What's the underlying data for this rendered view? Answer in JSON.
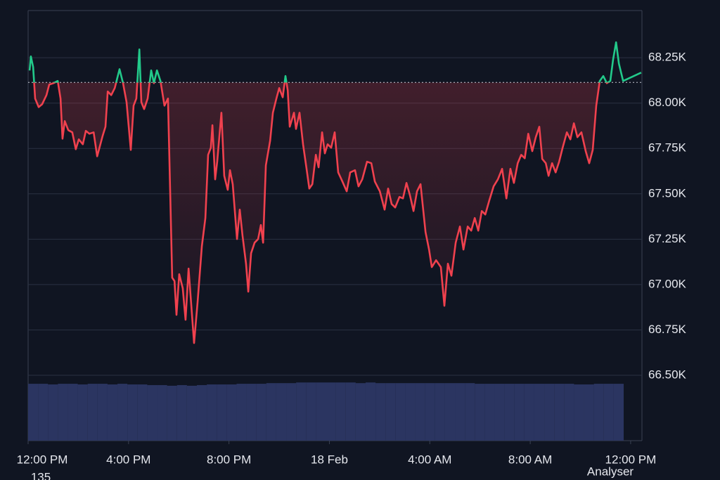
{
  "chart_data": {
    "type": "line",
    "x": [
      0.06,
      0.11,
      0.2,
      0.28,
      0.42,
      0.56,
      0.73,
      0.84,
      1.01,
      1.18,
      1.29,
      1.37,
      1.46,
      1.6,
      1.76,
      1.9,
      2.02,
      2.18,
      2.3,
      2.44,
      2.61,
      2.75,
      2.97,
      3.08,
      3.17,
      3.31,
      3.45,
      3.64,
      3.78,
      3.92,
      4.09,
      4.2,
      4.31,
      4.43,
      4.51,
      4.62,
      4.76,
      4.9,
      5.01,
      5.13,
      5.27,
      5.43,
      5.57,
      5.74,
      5.83,
      5.91,
      6.02,
      6.16,
      6.27,
      6.39,
      6.61,
      6.75,
      6.92,
      7.06,
      7.17,
      7.28,
      7.34,
      7.45,
      7.53,
      7.7,
      7.81,
      7.95,
      8.04,
      8.15,
      8.32,
      8.43,
      8.54,
      8.68,
      8.77,
      8.88,
      9.02,
      9.16,
      9.27,
      9.36,
      9.47,
      9.64,
      9.75,
      9.89,
      10.0,
      10.14,
      10.25,
      10.34,
      10.42,
      10.59,
      10.67,
      10.81,
      10.95,
      11.09,
      11.2,
      11.32,
      11.46,
      11.57,
      11.71,
      11.82,
      11.93,
      12.07,
      12.21,
      12.35,
      12.52,
      12.69,
      12.83,
      13.02,
      13.16,
      13.31,
      13.5,
      13.67,
      13.81,
      14.01,
      14.2,
      14.34,
      14.48,
      14.62,
      14.79,
      14.93,
      15.07,
      15.21,
      15.35,
      15.49,
      15.63,
      15.83,
      15.97,
      16.08,
      16.25,
      16.44,
      16.58,
      16.72,
      16.86,
      17.03,
      17.2,
      17.34,
      17.51,
      17.65,
      17.79,
      17.93,
      18.07,
      18.21,
      18.37,
      18.54,
      18.71,
      18.88,
      19.05,
      19.21,
      19.35,
      19.5,
      19.64,
      19.78,
      19.92,
      20.08,
      20.22,
      20.36,
      20.48,
      20.62,
      20.73,
      20.87,
      21.01,
      21.15,
      21.29,
      21.46,
      21.6,
      21.74,
      21.88,
      22.04,
      22.21,
      22.35,
      22.49,
      22.63,
      22.77,
      22.91,
      23.05,
      23.19,
      23.3,
      23.42,
      23.53,
      23.7,
      24.42
    ],
    "series": [
      {
        "up_color": "#22c98a",
        "down_color": "#f0414e",
        "values": [
          68180,
          68257,
          68199,
          68025,
          67978,
          67994,
          68044,
          68102,
          68110,
          68122,
          68025,
          67804,
          67901,
          67851,
          67839,
          67746,
          67800,
          67773,
          67847,
          67831,
          67839,
          67707,
          67820,
          67870,
          68064,
          68044,
          68083,
          68187,
          68110,
          68005,
          67742,
          67986,
          68025,
          68296,
          68005,
          67967,
          68025,
          68180,
          68110,
          68180,
          68122,
          67986,
          68025,
          67038,
          67019,
          66833,
          67057,
          66980,
          66806,
          67088,
          66678,
          66902,
          67212,
          67367,
          67715,
          67754,
          67878,
          67580,
          67677,
          67947,
          67599,
          67522,
          67630,
          67553,
          67251,
          67413,
          67270,
          67115,
          66961,
          67173,
          67231,
          67251,
          67328,
          67231,
          67657,
          67793,
          67947,
          68025,
          68083,
          68032,
          68149,
          68071,
          67870,
          67947,
          67858,
          67947,
          67773,
          67638,
          67529,
          67553,
          67715,
          67646,
          67839,
          67723,
          67773,
          67754,
          67839,
          67618,
          67568,
          67514,
          67618,
          67630,
          67541,
          67580,
          67677,
          67669,
          67568,
          67514,
          67413,
          67529,
          67444,
          67425,
          67483,
          67475,
          67560,
          67491,
          67405,
          67514,
          67553,
          67289,
          67193,
          67096,
          67134,
          67096,
          66883,
          67115,
          67049,
          67231,
          67320,
          67193,
          67320,
          67297,
          67367,
          67297,
          67405,
          67386,
          67464,
          67541,
          67580,
          67638,
          67475,
          67638,
          67560,
          67669,
          67715,
          67696,
          67831,
          67735,
          67812,
          67870,
          67692,
          67669,
          67599,
          67669,
          67618,
          67677,
          67754,
          67839,
          67800,
          67889,
          67812,
          67839,
          67735,
          67669,
          67742,
          67986,
          68122,
          68149,
          68110,
          68122,
          68238,
          68335,
          68218,
          68122,
          68168
        ]
      }
    ],
    "baseline": 68114,
    "xlim": [
      0,
      24.45
    ],
    "xticks": [
      {
        "value": 0,
        "label": "12:00 PM"
      },
      {
        "value": 4,
        "label": "4:00 PM"
      },
      {
        "value": 8,
        "label": "8:00 PM"
      },
      {
        "value": 12,
        "label": "18 Feb"
      },
      {
        "value": 16,
        "label": "4:00 AM"
      },
      {
        "value": 20,
        "label": "8:00 AM"
      },
      {
        "value": 24,
        "label": "12:00 PM"
      }
    ],
    "ylim": [
      66140,
      68510
    ],
    "yticks": [
      {
        "value": 66500,
        "label": "66.50K"
      },
      {
        "value": 66750,
        "label": "66.75K"
      },
      {
        "value": 67000,
        "label": "67.00K"
      },
      {
        "value": 67250,
        "label": "67.25K"
      },
      {
        "value": 67500,
        "label": "67.50K"
      },
      {
        "value": 67750,
        "label": "67.75K"
      },
      {
        "value": 68000,
        "label": "68.00K"
      },
      {
        "value": 68250,
        "label": "68.25K"
      }
    ],
    "grid": true,
    "volume": {
      "color": "#2b3561",
      "values": [
        87,
        87,
        86,
        87,
        87,
        86,
        87,
        87,
        86,
        87,
        86,
        86,
        85,
        85,
        84,
        85,
        84,
        85,
        86,
        86,
        86,
        87,
        87,
        87,
        88,
        88,
        88,
        89,
        89,
        89,
        89,
        89,
        89,
        88,
        89,
        88,
        88,
        88,
        88,
        88,
        88,
        88,
        88,
        88,
        88,
        87,
        87,
        87,
        87,
        87,
        87,
        87,
        87,
        87,
        87,
        86,
        86,
        87,
        87,
        87
      ]
    },
    "annotations": [
      "135",
      "Analyser"
    ]
  }
}
